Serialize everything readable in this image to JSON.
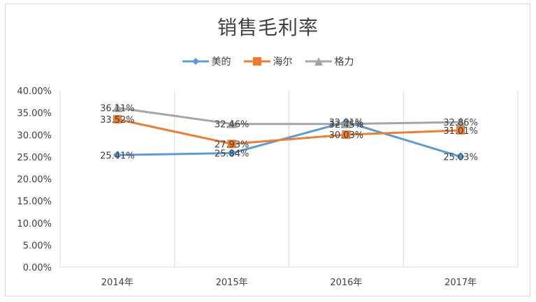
{
  "chart_data": {
    "type": "line",
    "title": "销售毛利率",
    "categories": [
      "2014年",
      "2015年",
      "2016年",
      "2017年"
    ],
    "ylim": [
      0,
      0.4
    ],
    "yticks": [
      "0.00%",
      "5.00%",
      "10.00%",
      "15.00%",
      "20.00%",
      "25.00%",
      "30.00%",
      "35.00%",
      "40.00%"
    ],
    "legend_position": "top",
    "series": [
      {
        "name": "美的",
        "color": "#5b9bd5",
        "marker": "diamond",
        "values": [
          0.2541,
          0.2584,
          0.3291,
          0.2503
        ],
        "labels": [
          "25.41%",
          "25.84%",
          "32.91%",
          "25.03%"
        ]
      },
      {
        "name": "海尔",
        "color": "#ed7d31",
        "marker": "square",
        "values": [
          0.3352,
          0.2793,
          0.3003,
          0.3101
        ],
        "labels": [
          "33.52%",
          "27.93%",
          "30.03%",
          "31.01%"
        ]
      },
      {
        "name": "格力",
        "color": "#a5a5a5",
        "marker": "triangle",
        "values": [
          0.3611,
          0.3246,
          0.3245,
          0.3286
        ],
        "labels": [
          "36.11%",
          "32.46%",
          "32.45%",
          "32.86%"
        ]
      }
    ]
  }
}
